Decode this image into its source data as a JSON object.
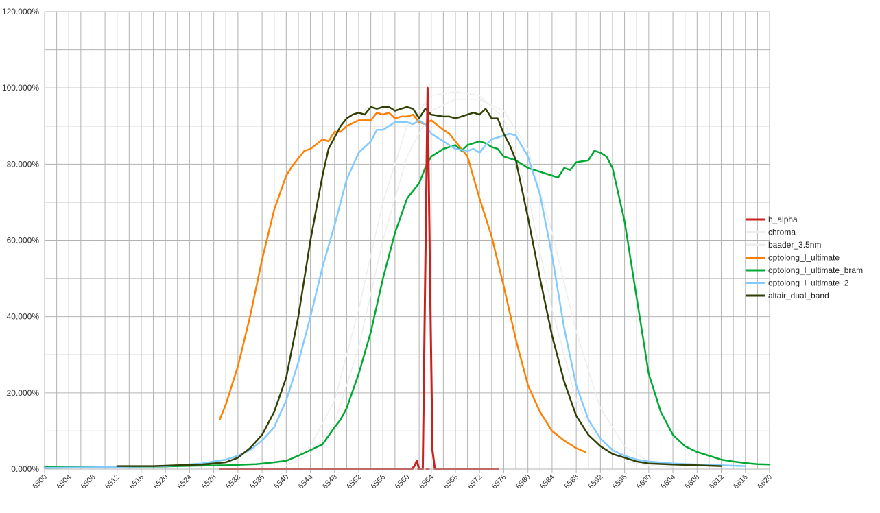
{
  "chart_data": {
    "type": "line",
    "xlim": [
      6500,
      6620
    ],
    "ylim": [
      0,
      120
    ],
    "y_tick_labels": [
      "0.000%",
      "20.000%",
      "40.000%",
      "60.000%",
      "80.000%",
      "100.000%",
      "120.000%"
    ],
    "y_tick_values": [
      0,
      20,
      40,
      60,
      80,
      100,
      120
    ],
    "x_tick_values": [
      6500,
      6504,
      6508,
      6512,
      6516,
      6520,
      6524,
      6528,
      6532,
      6536,
      6540,
      6544,
      6548,
      6552,
      6556,
      6560,
      6564,
      6568,
      6572,
      6576,
      6580,
      6584,
      6588,
      6592,
      6596,
      6600,
      6604,
      6608,
      6612,
      6616,
      6620
    ],
    "x_tick_labels": [
      "6500",
      "6504",
      "6508",
      "6512",
      "6516",
      "6520",
      "6524",
      "6528",
      "6532",
      "6536",
      "6540",
      "6544",
      "6548",
      "6552",
      "6556",
      "6560",
      "6564",
      "6568",
      "6572",
      "6576",
      "6580",
      "6584",
      "6588",
      "6592",
      "6596",
      "6600",
      "6604",
      "6608",
      "6612",
      "6616",
      "6620"
    ],
    "grid": true,
    "legend_position": "right",
    "series": [
      {
        "name": "h_alpha",
        "color": "#c9211e",
        "width": 3,
        "x": [
          6529.0,
          6560.8,
          6561.3,
          6561.6,
          6562.0,
          6562.6,
          6563.0,
          6563.4,
          6563.8,
          6564.2,
          6564.6,
          6565.0,
          6575.0
        ],
        "y": [
          0,
          0,
          1,
          2.2,
          0,
          0,
          50,
          100,
          50,
          5,
          0,
          0,
          0
        ]
      },
      {
        "name": "chroma",
        "color": "#eeeeee",
        "width": 1.5,
        "x": [
          6536,
          6540,
          6544,
          6548,
          6552,
          6556,
          6560,
          6564,
          6568,
          6572,
          6576,
          6580,
          6584,
          6588,
          6592,
          6596,
          6600,
          6604
        ],
        "y": [
          1,
          2,
          6,
          18,
          42,
          70,
          90,
          98,
          99,
          98,
          92,
          72,
          42,
          18,
          6,
          2,
          1,
          0.5
        ]
      },
      {
        "name": "baader_3.5nm",
        "color": "#eeeeee",
        "width": 1.5,
        "x": [
          6540,
          6544,
          6548,
          6552,
          6556,
          6560,
          6564,
          6568,
          6572,
          6576,
          6580,
          6584,
          6588,
          6592,
          6596,
          6600,
          6604
        ],
        "y": [
          1,
          4,
          12,
          32,
          60,
          82,
          94,
          97,
          97,
          94,
          84,
          62,
          36,
          16,
          6,
          2,
          1
        ]
      },
      {
        "name": "optolong_l_ultimate",
        "color": "#ff8000",
        "width": 2.5,
        "x": [
          6529,
          6530,
          6532,
          6534,
          6536,
          6538,
          6540,
          6541,
          6543,
          6544,
          6546,
          6547,
          6548,
          6549,
          6550,
          6552,
          6554,
          6555,
          6556,
          6557,
          6558,
          6559,
          6560,
          6561,
          6562,
          6563,
          6564,
          6566,
          6567,
          6568,
          6570,
          6572,
          6574,
          6576,
          6578,
          6580,
          6582,
          6584,
          6586,
          6588,
          6589.5
        ],
        "y": [
          13,
          17,
          27,
          40,
          55,
          68,
          77,
          79.5,
          83.5,
          84,
          86.5,
          86,
          88.5,
          88.5,
          90,
          91.5,
          91.5,
          93.5,
          93,
          93.5,
          92,
          92.5,
          92.5,
          93,
          91,
          90.5,
          91.5,
          89,
          88,
          86,
          82,
          71,
          61,
          48,
          34,
          22,
          15,
          10,
          7.5,
          5.5,
          4.5
        ]
      },
      {
        "name": "optolong_l_ultimate_bram",
        "color": "#00a933",
        "width": 2.5,
        "x": [
          6500,
          6510,
          6520,
          6525,
          6530,
          6535,
          6538,
          6540,
          6542,
          6544,
          6546,
          6548,
          6549,
          6550,
          6552,
          6554,
          6556,
          6558,
          6560,
          6561,
          6562,
          6563,
          6564,
          6566,
          6568,
          6569,
          6570,
          6571,
          6572,
          6573,
          6574,
          6575,
          6576,
          6578,
          6580,
          6582,
          6584,
          6585,
          6586,
          6587,
          6588,
          6590,
          6591,
          6592,
          6593,
          6594,
          6596,
          6598,
          6600,
          6602,
          6604,
          6606,
          6608,
          6610,
          6612,
          6614,
          6616,
          6618,
          6620
        ],
        "y": [
          0.5,
          0.5,
          0.7,
          0.9,
          1,
          1.3,
          1.8,
          2.2,
          3.5,
          5,
          6.5,
          11,
          13,
          16,
          25,
          36,
          50,
          62,
          71,
          73,
          75,
          79,
          82,
          84,
          85,
          83.5,
          85,
          85.5,
          86,
          85.5,
          84.5,
          84,
          82,
          81,
          79,
          78,
          77,
          76.5,
          79,
          78.5,
          80.5,
          81,
          83.5,
          83,
          82,
          79,
          65,
          45,
          25,
          15,
          9,
          6,
          4.5,
          3.5,
          2.5,
          2,
          1.6,
          1.3,
          1.2
        ]
      },
      {
        "name": "optolong_l_ultimate_2",
        "color": "#83caff",
        "width": 2.5,
        "x": [
          6500,
          6510,
          6520,
          6526,
          6528,
          6530,
          6532,
          6534,
          6536,
          6538,
          6540,
          6542,
          6544,
          6546,
          6548,
          6550,
          6552,
          6554,
          6555,
          6556,
          6558,
          6559,
          6560,
          6561,
          6562,
          6563,
          6564,
          6566,
          6568,
          6570,
          6571,
          6572,
          6573,
          6574,
          6575,
          6576,
          6577,
          6578,
          6580,
          6582,
          6584,
          6586,
          6588,
          6590,
          6592,
          6594,
          6596,
          6598,
          6600,
          6604,
          6608,
          6612,
          6616
        ],
        "y": [
          0.3,
          0.5,
          0.8,
          1.5,
          2,
          2.5,
          3.5,
          5,
          7.5,
          11,
          18,
          28,
          40,
          53,
          64,
          76,
          83,
          86,
          89,
          89,
          91,
          91,
          91,
          90.5,
          91.5,
          90.5,
          88,
          86,
          84,
          83.5,
          84,
          83,
          85,
          86.5,
          87,
          87.5,
          88,
          87.5,
          82,
          72,
          56,
          37,
          22,
          13,
          8,
          5,
          3.5,
          2.5,
          2,
          1.5,
          1.2,
          1,
          0.8
        ]
      },
      {
        "name": "altair_dual_band",
        "color": "#314004",
        "width": 2.5,
        "x": [
          6512,
          6515,
          6518,
          6522,
          6526,
          6530,
          6532,
          6534,
          6536,
          6538,
          6540,
          6542,
          6544,
          6546,
          6547,
          6548,
          6549,
          6550,
          6551,
          6552,
          6553,
          6554,
          6555,
          6556,
          6557,
          6558,
          6559,
          6560,
          6561,
          6562,
          6563,
          6564,
          6566,
          6567,
          6568,
          6569,
          6570,
          6571,
          6572,
          6573,
          6574,
          6575,
          6576,
          6577,
          6578,
          6580,
          6582,
          6584,
          6586,
          6588,
          6590,
          6592,
          6594,
          6596,
          6598,
          6600,
          6604,
          6608,
          6612
        ],
        "y": [
          0.8,
          0.8,
          0.8,
          1,
          1.2,
          1.8,
          3,
          5.5,
          9,
          15,
          24,
          40,
          60,
          77,
          84,
          87,
          90,
          92,
          93,
          93.5,
          93,
          95,
          94.5,
          95,
          95,
          94,
          94.5,
          95,
          94.5,
          92,
          94.5,
          93,
          92.5,
          92.5,
          92,
          92.5,
          93,
          93.5,
          93,
          94.5,
          92,
          92,
          88,
          85,
          81,
          66,
          50,
          35,
          23,
          14,
          9,
          6,
          4,
          3,
          2,
          1.5,
          1.2,
          1,
          0.8
        ]
      }
    ]
  }
}
